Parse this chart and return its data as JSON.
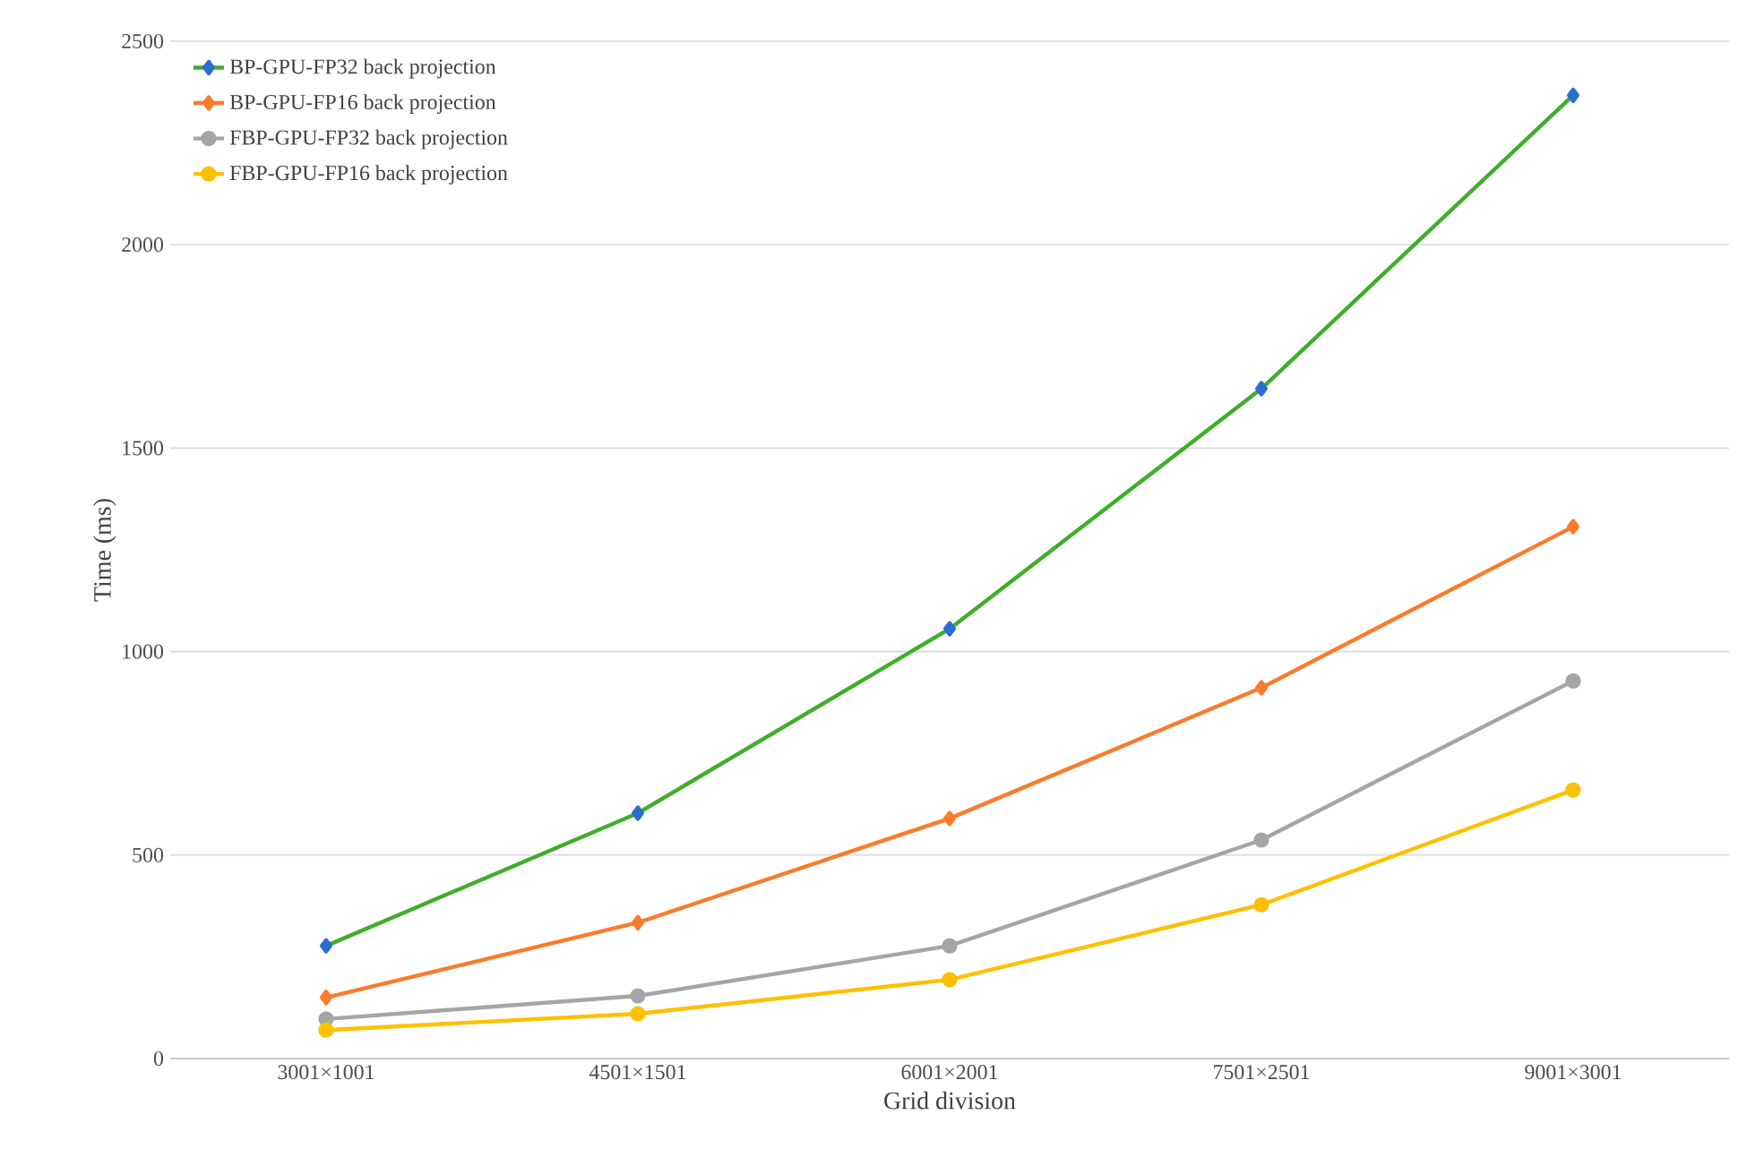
{
  "chart_data": {
    "type": "line",
    "xlabel": "Grid division",
    "ylabel": "Time (ms)",
    "categories": [
      "3001×1001",
      "4501×1501",
      "6001×2001",
      "7501×2501",
      "9001×3001"
    ],
    "ylim": [
      0,
      2500
    ],
    "yticks": [
      0,
      500,
      1000,
      1500,
      2000,
      2500
    ],
    "grid": "y",
    "legend": "top left",
    "series": [
      {
        "name": "BP-GPU-FP32 back projection",
        "color": "#3fae2a",
        "colors": [
          "#2a6fd0",
          "#2a6fd0",
          "#2a6fd0",
          "#2a6fd0",
          "#2a6fd0"
        ],
        "marker": "diamond",
        "values": [
          277,
          603,
          1056,
          1646,
          2367
        ]
      },
      {
        "name": "BP-GPU-FP16 back projection",
        "color": "#fb7b2b",
        "marker": "diamond",
        "values": [
          150,
          334,
          590,
          911,
          1307
        ]
      },
      {
        "name": "FBP-GPU-FP32 back projection",
        "color": "#a5a5a5",
        "marker": "circle",
        "values": [
          97,
          154,
          277,
          537,
          928
        ]
      },
      {
        "name": "FBP-GPU-FP16 back projection",
        "color": "#ffc000",
        "marker": "circle",
        "values": [
          70,
          110,
          194,
          378,
          660
        ]
      }
    ]
  }
}
